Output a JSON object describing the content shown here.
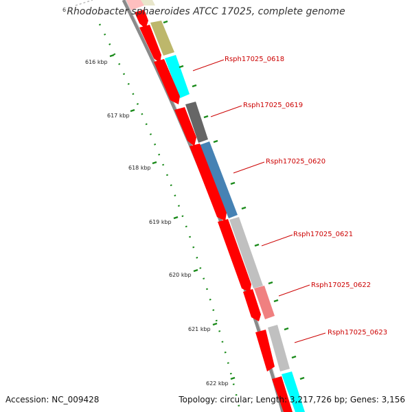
{
  "map": {
    "title": "Rhodobacter sphaeroides ATCC 17025, complete genome",
    "accession_label": "Accession: NC_009428",
    "summary_label": "Topology: circular; Length: 3,217,726 bp; Genes: 3,156",
    "top_tick_label": "6",
    "ticks": [
      {
        "label": "616 kbp",
        "position_kbp": 616
      },
      {
        "label": "617 kbp",
        "position_kbp": 617
      },
      {
        "label": "618 kbp",
        "position_kbp": 618
      },
      {
        "label": "619 kbp",
        "position_kbp": 619
      },
      {
        "label": "620 kbp",
        "position_kbp": 620
      },
      {
        "label": "621 kbp",
        "position_kbp": 621
      },
      {
        "label": "622 kbp",
        "position_kbp": 622
      }
    ],
    "gene_labels": [
      {
        "label": "Rsph17025_0618",
        "color": "#cc0000"
      },
      {
        "label": "Rsph17025_0619",
        "color": "#cc0000"
      },
      {
        "label": "Rsph17025_0620",
        "color": "#cc0000"
      },
      {
        "label": "Rsph17025_0621",
        "color": "#cc0000"
      },
      {
        "label": "Rsph17025_0622",
        "color": "#cc0000"
      },
      {
        "label": "Rsph17025_0623",
        "color": "#cc0000"
      }
    ],
    "colors": {
      "backbone": "#7a7a7a",
      "cds": "#ff0000",
      "tick_marks": "#1a8a1a",
      "label_text": "#cc0000",
      "feature_olive": "#bdb76b",
      "feature_cyan": "#00ffff",
      "feature_dark_gray": "#666666",
      "feature_steel_blue": "#4682b4",
      "feature_light_gray": "#c0c0c0",
      "feature_light_red": "#f08080"
    }
  }
}
